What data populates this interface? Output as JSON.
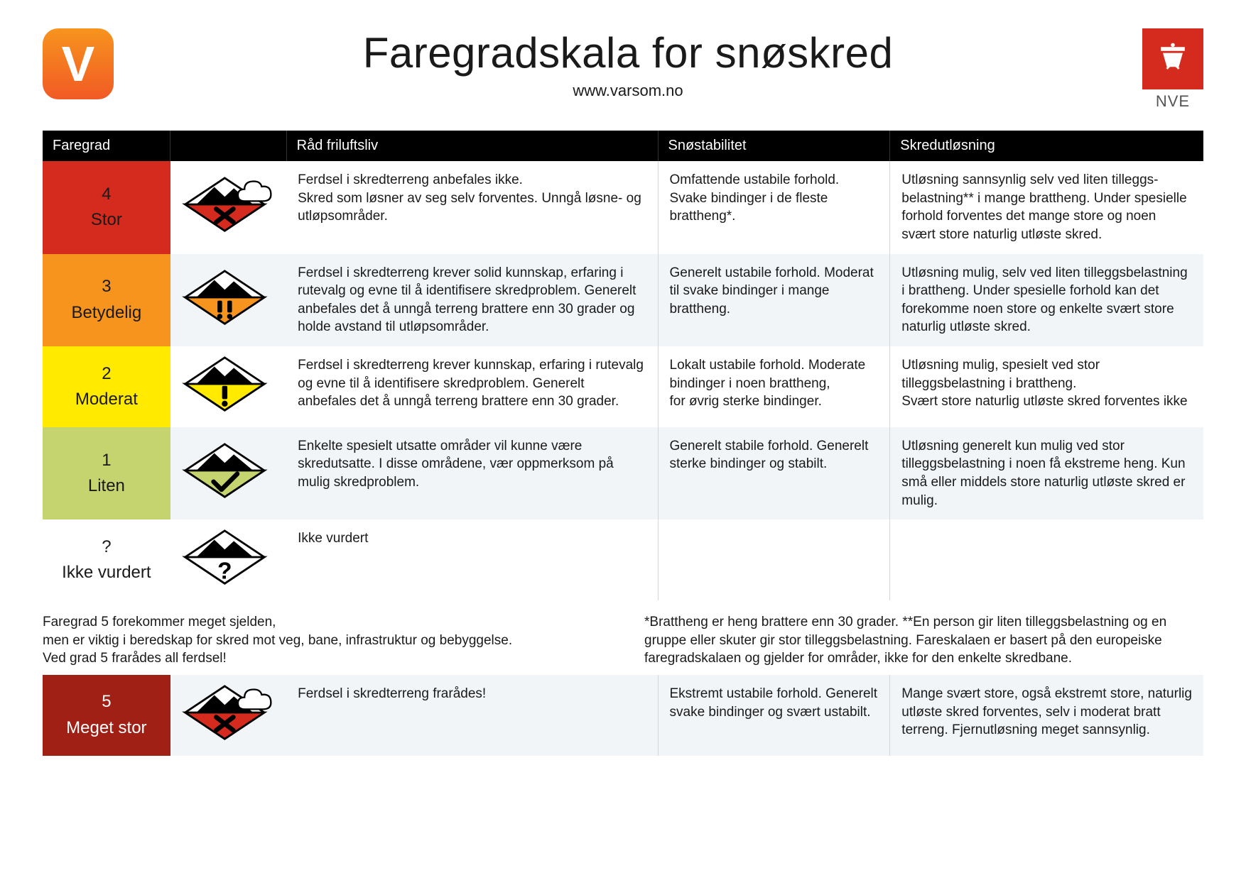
{
  "header": {
    "logo_left_letter": "V",
    "title": "Faregradskala for snøskred",
    "subtitle": "www.varsom.no",
    "nve_label": "NVE"
  },
  "columns": {
    "faregrad": "Faregrad",
    "icon": "",
    "rad": "Råd friluftsliv",
    "stabilitet": "Snøstabilitet",
    "skred": "Skredutløsning"
  },
  "colors": {
    "level4": "#d52b1e",
    "level3": "#f7941e",
    "level2": "#ffea00",
    "level1": "#c5d46f",
    "level0": "#ffffff",
    "level5": "#a02015",
    "header_bg": "#000000",
    "row_alt": "#f2f5f8",
    "border": "#d6d6d6",
    "nve_red": "#d52b1e"
  },
  "rows": [
    {
      "num": "4",
      "name": "Stor",
      "bg": "#d52b1e",
      "fg": "#1a1a1a",
      "symbol": "x_cloud",
      "sym_color": "#d52b1e",
      "alt": false,
      "rad": "Ferdsel i skredterreng anbefales ikke.\nSkred som løsner av seg selv forventes. Unngå løsne- og utløpsområder.",
      "stab": "Omfattende ustabile forhold. Svake bindinger i de fleste brattheng*.",
      "skred": "Utløsning sannsynlig selv ved liten tilleggs­belastning** i mange brattheng. Under spesielle forhold forventes det mange store og noen svært store naturlig utløste skred."
    },
    {
      "num": "3",
      "name": "Betydelig",
      "bg": "#f7941e",
      "fg": "#1a1a1a",
      "symbol": "dblbang",
      "sym_color": "#f7941e",
      "alt": true,
      "rad": "Ferdsel i skredterreng krever solid kunnskap, erfaring i rutevalg og evne til å identifisere skredproblem. Generelt anbefales det å unngå terreng brattere enn 30 grader og holde avstand til utløpsområder.",
      "stab": "Generelt ustabile forhold. Moderat til svake bindinger i mange brattheng.",
      "skred": "Utløsning mulig, selv ved liten tilleggsbelastning i brattheng. Under spesielle forhold kan det forekomme noen store og enkelte svært store naturlig utløste skred."
    },
    {
      "num": "2",
      "name": "Moderat",
      "bg": "#ffea00",
      "fg": "#1a1a1a",
      "symbol": "bang",
      "sym_color": "#ffea00",
      "alt": false,
      "rad": "Ferdsel i skredterreng krever kunnskap, erfaring i rutevalg og evne til å identifisere skredproblem. Generelt anbefales det å unngå terreng brattere enn 30 grader.",
      "stab": "Lokalt ustabile forhold. Moderate bindinger i noen brattheng,\nfor øvrig sterke bindinger.",
      "skred": "Utløsning mulig, spesielt ved stor tilleggsbelastning i brattheng.\nSvært store naturlig utløste skred forventes ikke"
    },
    {
      "num": "1",
      "name": "Liten",
      "bg": "#c5d46f",
      "fg": "#1a1a1a",
      "symbol": "check",
      "sym_color": "#c5d46f",
      "alt": true,
      "rad": "Enkelte spesielt utsatte områder vil kunne være skredutsatte. I disse områdene, vær oppmerksom på mulig skredproblem.",
      "stab": "Generelt stabile forhold. Generelt sterke bindinger og stabilt.",
      "skred": "Utløsning generelt kun mulig ved stor tilleggsbelastning i noen få ekstreme heng. Kun små eller middels store naturlig utløste skred er mulig."
    },
    {
      "num": "?",
      "name": "Ikke vurdert",
      "bg": "#ffffff",
      "fg": "#1a1a1a",
      "symbol": "question",
      "sym_color": "#ffffff",
      "alt": false,
      "rad": "Ikke vurdert",
      "stab": "",
      "skred": ""
    }
  ],
  "footnote_left": "Faregrad 5 forekommer meget sjelden,\nmen er viktig i beredskap for skred mot veg, bane, infrastruktur og bebyggelse.\nVed grad 5 frarådes all ferdsel!",
  "footnote_right": "*Brattheng er heng brattere enn 30 grader. **En person gir liten tilleggsbelastning og en gruppe eller skuter gir stor tilleggsbelastning. Fareskalaen er basert på den europeiske faregradskalaen og gjelder for områder, ikke for den enkelte skredbane.",
  "row5": {
    "num": "5",
    "name": "Meget stor",
    "bg": "#a02015",
    "fg": "#ffffff",
    "symbol": "x_cloud",
    "sym_color": "#d52b1e",
    "rad": "Ferdsel i skredterreng frarådes!",
    "stab": "Ekstremt ustabile forhold. Generelt svake bindinger og svært ustabilt.",
    "skred": "Mange svært store, også ekstremt store, naturlig utløste skred forventes, selv i moderat bratt terreng. Fjernutløsning meget sannsynlig."
  }
}
